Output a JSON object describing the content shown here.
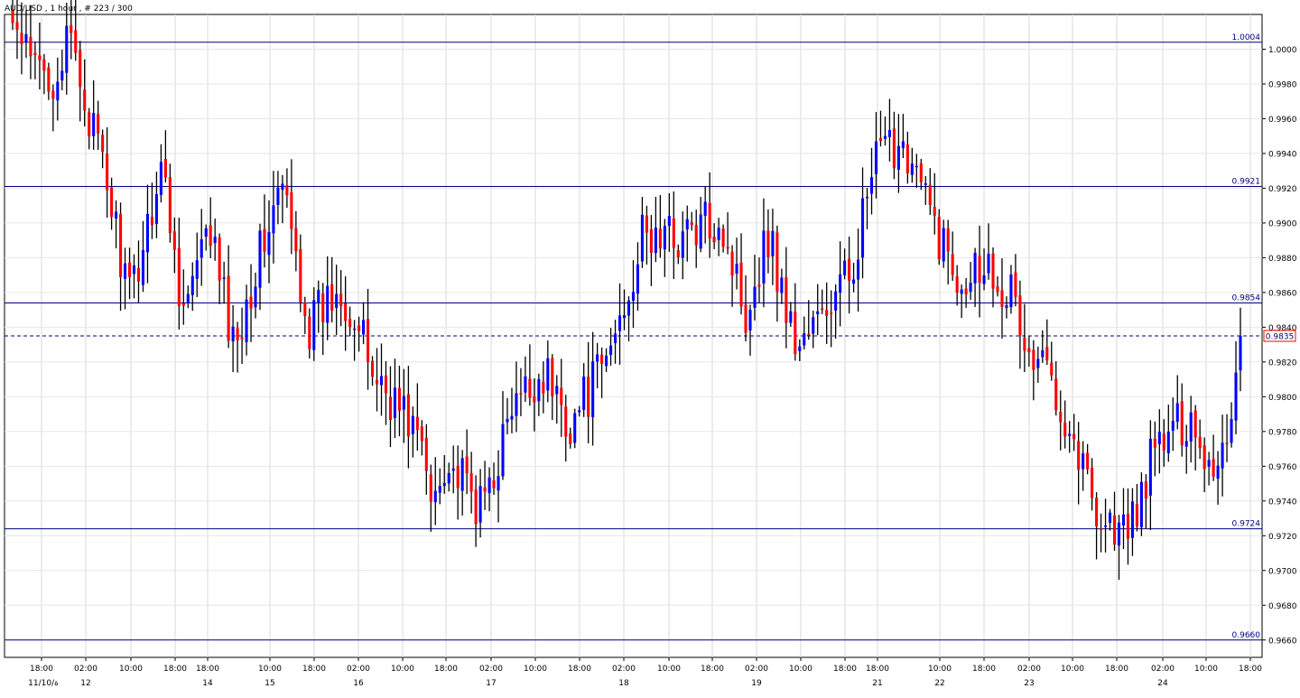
{
  "header": {
    "title": "AUD/USD , 1 hour , # 223 / 300"
  },
  "chart_data": {
    "type": "candlestick",
    "symbol": "AUD/USD",
    "timeframe": "1 hour",
    "ylim": [
      0.965,
      1.002
    ],
    "y_ticks": [
      "1.0000",
      "0.9980",
      "0.9960",
      "0.9940",
      "0.9920",
      "0.9900",
      "0.9880",
      "0.9860",
      "0.9840",
      "0.9820",
      "0.9800",
      "0.9780",
      "0.9760",
      "0.9740",
      "0.9720",
      "0.9700",
      "0.9680",
      "0.9660"
    ],
    "x_ticks": [
      {
        "label": "18:00",
        "date": "11/10/ة"
      },
      {
        "label": "02:00",
        "date": "12"
      },
      {
        "label": "10:00",
        "date": ""
      },
      {
        "label": "18:00",
        "date": ""
      },
      {
        "label": "18:00",
        "date": "14"
      },
      {
        "label": "10:00",
        "date": "15"
      },
      {
        "label": "18:00",
        "date": ""
      },
      {
        "label": "02:00",
        "date": "16"
      },
      {
        "label": "10:00",
        "date": ""
      },
      {
        "label": "18:00",
        "date": ""
      },
      {
        "label": "02:00",
        "date": "17"
      },
      {
        "label": "10:00",
        "date": ""
      },
      {
        "label": "18:00",
        "date": ""
      },
      {
        "label": "02:00",
        "date": "18"
      },
      {
        "label": "10:00",
        "date": ""
      },
      {
        "label": "18:00",
        "date": ""
      },
      {
        "label": "02:00",
        "date": "19"
      },
      {
        "label": "10:00",
        "date": ""
      },
      {
        "label": "18:00",
        "date": ""
      },
      {
        "label": "18:00",
        "date": "21"
      },
      {
        "label": "10:00",
        "date": "22"
      },
      {
        "label": "18:00",
        "date": ""
      },
      {
        "label": "02:00",
        "date": "23"
      },
      {
        "label": "10:00",
        "date": ""
      },
      {
        "label": "18:00",
        "date": ""
      },
      {
        "label": "02:00",
        "date": "24"
      },
      {
        "label": "10:00",
        "date": ""
      },
      {
        "label": "18:00",
        "date": ""
      }
    ],
    "horizontal_levels": [
      {
        "value": 1.0004,
        "label": "1.0004"
      },
      {
        "value": 0.9921,
        "label": "0.9921"
      },
      {
        "value": 0.9854,
        "label": "0.9854"
      },
      {
        "value": 0.9724,
        "label": "0.9724"
      },
      {
        "value": 0.966,
        "label": "0.9660"
      }
    ],
    "current_price": {
      "value": 0.9835,
      "label": "0.9835"
    },
    "bull_color": "#0000ff",
    "bear_color": "#ff0000",
    "level_color": "#000080",
    "grid": true,
    "anchors": [
      [
        0,
        1.0015
      ],
      [
        4,
        0.999
      ],
      [
        9,
        0.9985
      ],
      [
        13,
        1.0003
      ],
      [
        22,
        0.991
      ],
      [
        26,
        0.9855
      ],
      [
        33,
        0.9935
      ],
      [
        38,
        0.985
      ],
      [
        44,
        0.9895
      ],
      [
        49,
        0.983
      ],
      [
        57,
        0.99
      ],
      [
        60,
        0.992
      ],
      [
        66,
        0.984
      ],
      [
        73,
        0.9865
      ],
      [
        80,
        0.9815
      ],
      [
        90,
        0.978
      ],
      [
        93,
        0.974
      ],
      [
        96,
        0.9765
      ],
      [
        104,
        0.9735
      ],
      [
        111,
        0.979
      ],
      [
        118,
        0.9815
      ],
      [
        124,
        0.9785
      ],
      [
        132,
        0.982
      ],
      [
        140,
        0.989
      ],
      [
        152,
        0.9895
      ],
      [
        157,
        0.9905
      ],
      [
        163,
        0.985
      ],
      [
        168,
        0.9895
      ],
      [
        174,
        0.983
      ],
      [
        180,
        0.9845
      ],
      [
        186,
        0.987
      ],
      [
        192,
        0.9935
      ],
      [
        198,
        0.995
      ],
      [
        204,
        0.9905
      ],
      [
        210,
        0.987
      ],
      [
        216,
        0.988
      ],
      [
        222,
        0.986
      ],
      [
        226,
        0.982
      ],
      [
        231,
        0.9815
      ],
      [
        236,
        0.9775
      ],
      [
        242,
        0.973
      ],
      [
        248,
        0.972
      ],
      [
        254,
        0.977
      ],
      [
        262,
        0.979
      ],
      [
        266,
        0.976
      ],
      [
        270,
        0.9775
      ],
      [
        273,
        0.9835
      ]
    ]
  }
}
